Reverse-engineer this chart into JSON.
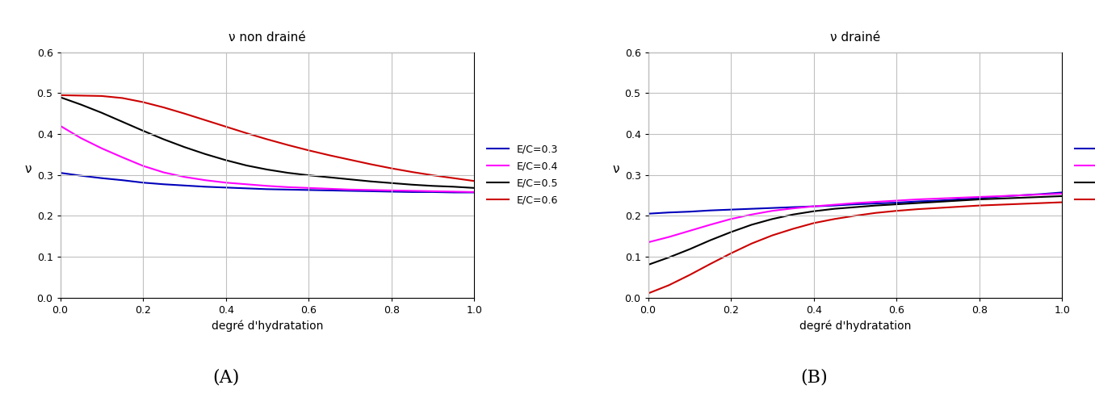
{
  "title_A": "ν non drainé",
  "title_B": "ν drainé",
  "xlabel": "degré d'hydratation",
  "ylabel": "ν",
  "label_A": "(A)",
  "label_B": "(B)",
  "xlim": [
    0,
    1
  ],
  "ylim": [
    0,
    0.6
  ],
  "xticks": [
    0,
    0.2,
    0.4,
    0.6,
    0.8,
    1
  ],
  "yticks": [
    0,
    0.1,
    0.2,
    0.3,
    0.4,
    0.5,
    0.6
  ],
  "legend_labels": [
    "E/C=0.3",
    "E/C=0.4",
    "E/C=0.5",
    "E/C=0.6"
  ],
  "colors": [
    "#0000bb",
    "#ff00ff",
    "#000000",
    "#cc0000"
  ],
  "background_color": "#ffffff",
  "grid_color": "#c0c0c0",
  "panel_A_curves": {
    "ec03": {
      "x": [
        0,
        0.05,
        0.1,
        0.15,
        0.2,
        0.25,
        0.3,
        0.35,
        0.4,
        0.45,
        0.5,
        0.55,
        0.6,
        0.65,
        0.7,
        0.75,
        0.8,
        0.85,
        0.9,
        0.95,
        1.0
      ],
      "y": [
        0.305,
        0.298,
        0.292,
        0.287,
        0.281,
        0.277,
        0.274,
        0.271,
        0.269,
        0.267,
        0.265,
        0.264,
        0.263,
        0.262,
        0.261,
        0.26,
        0.259,
        0.258,
        0.258,
        0.257,
        0.257
      ]
    },
    "ec04": {
      "x": [
        0,
        0.05,
        0.1,
        0.15,
        0.2,
        0.25,
        0.3,
        0.35,
        0.4,
        0.45,
        0.5,
        0.55,
        0.6,
        0.65,
        0.7,
        0.75,
        0.8,
        0.85,
        0.9,
        0.95,
        1.0
      ],
      "y": [
        0.42,
        0.39,
        0.365,
        0.343,
        0.322,
        0.306,
        0.295,
        0.287,
        0.281,
        0.277,
        0.273,
        0.27,
        0.268,
        0.266,
        0.264,
        0.263,
        0.262,
        0.261,
        0.26,
        0.259,
        0.258
      ]
    },
    "ec05": {
      "x": [
        0,
        0.05,
        0.1,
        0.15,
        0.2,
        0.25,
        0.3,
        0.35,
        0.4,
        0.45,
        0.5,
        0.55,
        0.6,
        0.65,
        0.7,
        0.75,
        0.8,
        0.85,
        0.9,
        0.95,
        1.0
      ],
      "y": [
        0.49,
        0.472,
        0.452,
        0.43,
        0.408,
        0.387,
        0.368,
        0.351,
        0.336,
        0.323,
        0.313,
        0.305,
        0.299,
        0.294,
        0.289,
        0.284,
        0.28,
        0.276,
        0.273,
        0.271,
        0.268
      ]
    },
    "ec06": {
      "x": [
        0,
        0.05,
        0.1,
        0.15,
        0.2,
        0.25,
        0.3,
        0.35,
        0.4,
        0.45,
        0.5,
        0.55,
        0.6,
        0.65,
        0.7,
        0.75,
        0.8,
        0.85,
        0.9,
        0.95,
        1.0
      ],
      "y": [
        0.495,
        0.494,
        0.493,
        0.488,
        0.478,
        0.465,
        0.45,
        0.434,
        0.418,
        0.402,
        0.387,
        0.373,
        0.36,
        0.348,
        0.337,
        0.326,
        0.316,
        0.307,
        0.299,
        0.292,
        0.285
      ]
    }
  },
  "panel_B_curves": {
    "ec03": {
      "x": [
        0,
        0.05,
        0.1,
        0.15,
        0.2,
        0.25,
        0.3,
        0.35,
        0.4,
        0.45,
        0.5,
        0.55,
        0.6,
        0.65,
        0.7,
        0.75,
        0.8,
        0.85,
        0.9,
        0.95,
        1.0
      ],
      "y": [
        0.205,
        0.208,
        0.21,
        0.213,
        0.215,
        0.217,
        0.219,
        0.221,
        0.223,
        0.225,
        0.228,
        0.23,
        0.232,
        0.235,
        0.237,
        0.24,
        0.243,
        0.247,
        0.25,
        0.253,
        0.257
      ]
    },
    "ec04": {
      "x": [
        0,
        0.05,
        0.1,
        0.15,
        0.2,
        0.25,
        0.3,
        0.35,
        0.4,
        0.45,
        0.5,
        0.55,
        0.6,
        0.65,
        0.7,
        0.75,
        0.8,
        0.85,
        0.9,
        0.95,
        1.0
      ],
      "y": [
        0.135,
        0.148,
        0.163,
        0.178,
        0.192,
        0.203,
        0.212,
        0.218,
        0.223,
        0.227,
        0.231,
        0.234,
        0.237,
        0.24,
        0.242,
        0.244,
        0.246,
        0.248,
        0.25,
        0.252,
        0.254
      ]
    },
    "ec05": {
      "x": [
        0,
        0.05,
        0.1,
        0.15,
        0.2,
        0.25,
        0.3,
        0.35,
        0.4,
        0.45,
        0.5,
        0.55,
        0.6,
        0.65,
        0.7,
        0.75,
        0.8,
        0.85,
        0.9,
        0.95,
        1.0
      ],
      "y": [
        0.08,
        0.098,
        0.118,
        0.14,
        0.16,
        0.178,
        0.192,
        0.203,
        0.211,
        0.217,
        0.221,
        0.225,
        0.228,
        0.231,
        0.234,
        0.237,
        0.24,
        0.242,
        0.244,
        0.246,
        0.248
      ]
    },
    "ec06": {
      "x": [
        0,
        0.05,
        0.1,
        0.15,
        0.2,
        0.25,
        0.3,
        0.35,
        0.4,
        0.45,
        0.5,
        0.55,
        0.6,
        0.65,
        0.7,
        0.75,
        0.8,
        0.85,
        0.9,
        0.95,
        1.0
      ],
      "y": [
        0.01,
        0.03,
        0.055,
        0.082,
        0.108,
        0.132,
        0.152,
        0.168,
        0.182,
        0.192,
        0.2,
        0.207,
        0.212,
        0.216,
        0.219,
        0.222,
        0.225,
        0.227,
        0.229,
        0.231,
        0.233
      ]
    }
  }
}
